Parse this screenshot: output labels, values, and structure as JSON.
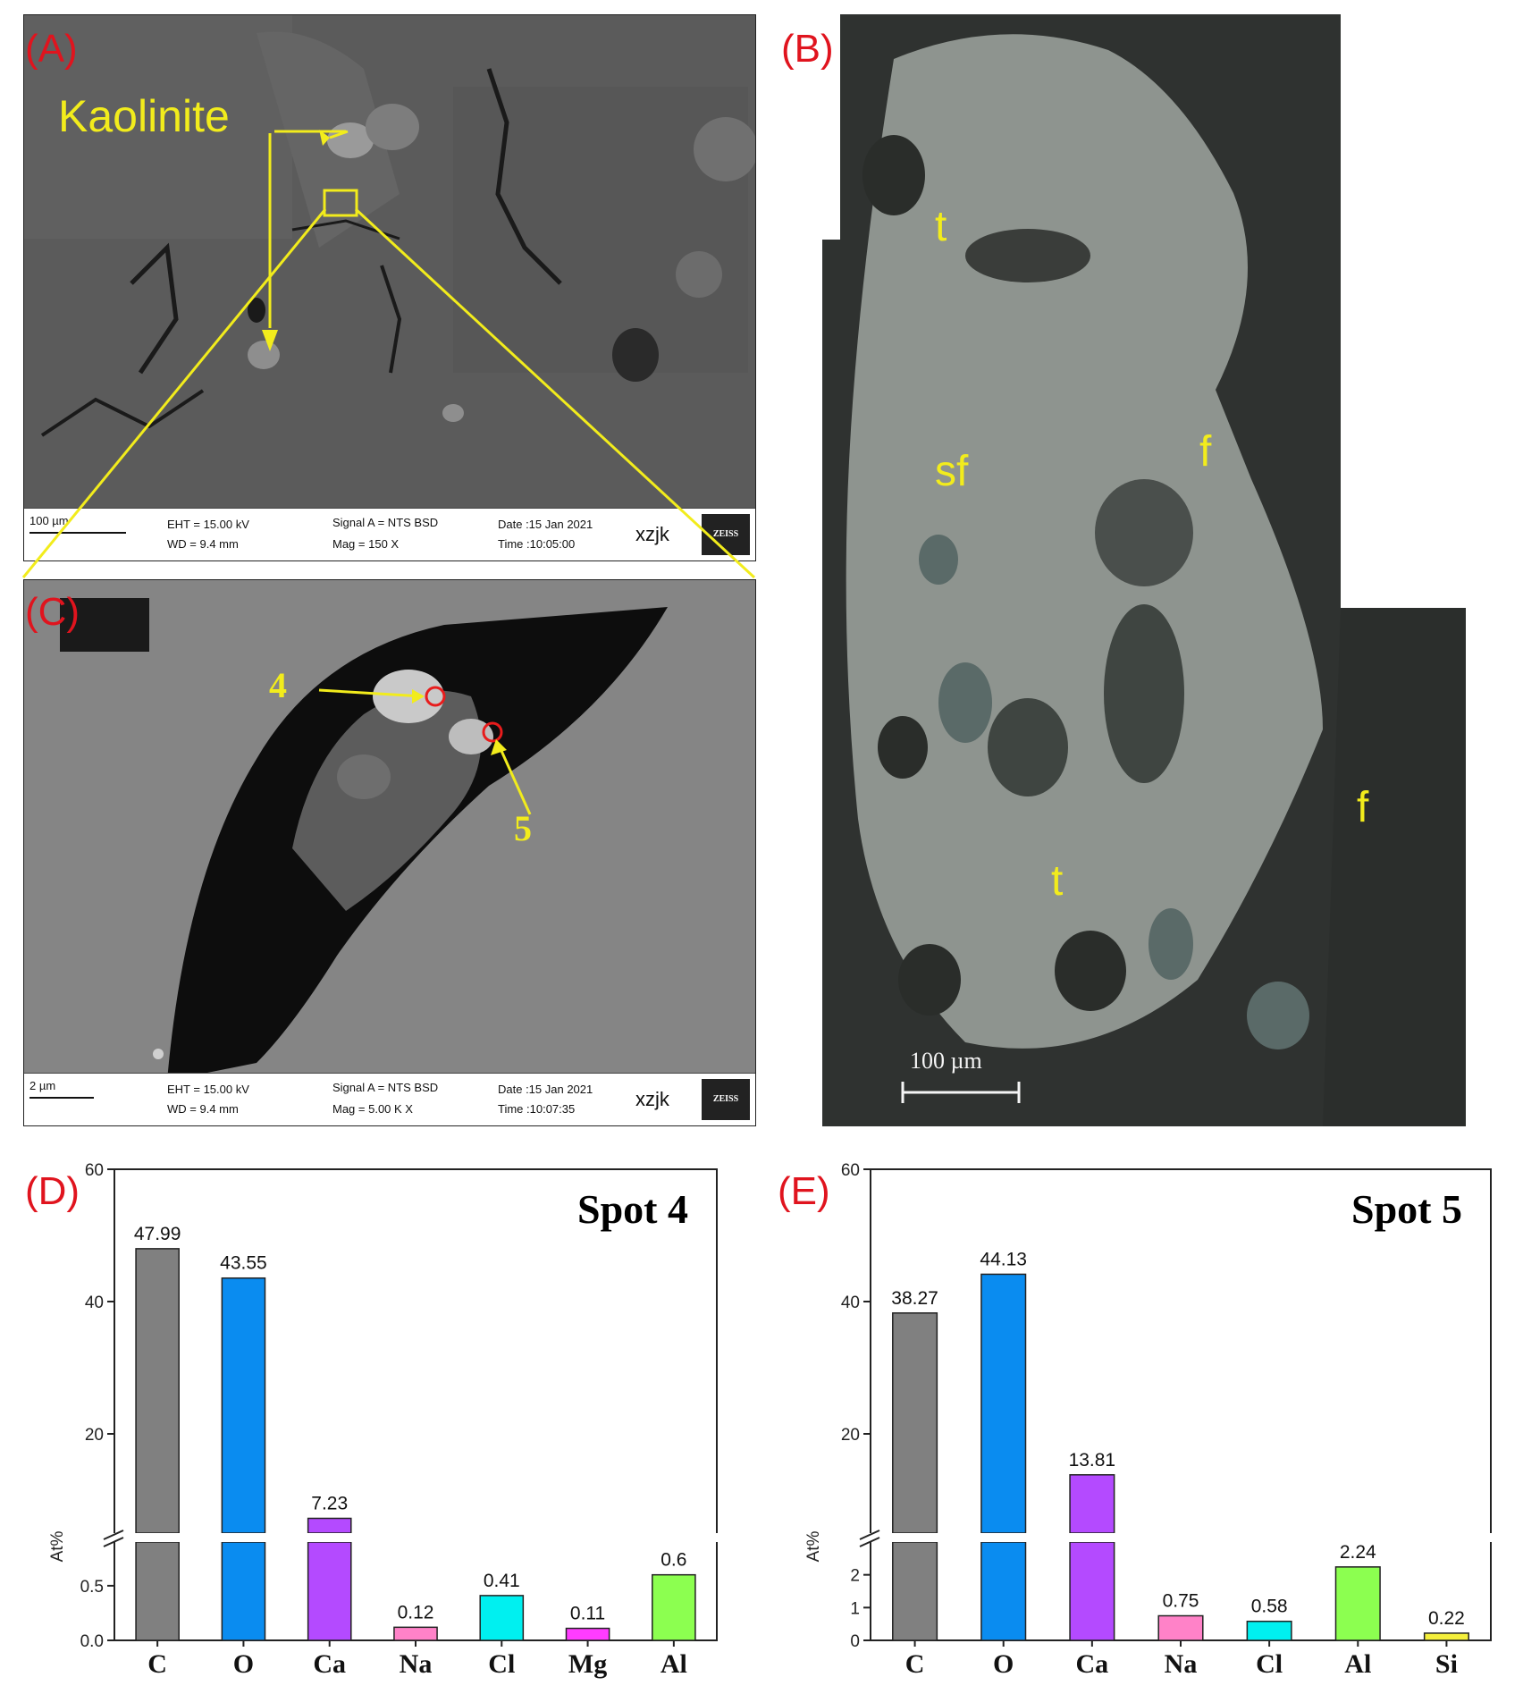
{
  "panels": {
    "A": {
      "label": "(A)",
      "annotation": "Kaolinite",
      "infobar": {
        "scale": "100 µm",
        "eht": "EHT = 15.00 kV",
        "wd": "WD = 9.4 mm",
        "signal": "Signal A = NTS BSD",
        "mag": "Mag =    150 X",
        "date": "Date :15 Jan 2021",
        "time": "Time :10:05:00",
        "operator": "xzjk",
        "brand": "ZEISS"
      }
    },
    "B": {
      "label": "(B)",
      "annotations": [
        "t",
        "sf",
        "f",
        "f",
        "t"
      ],
      "scale": "100 µm"
    },
    "C": {
      "label": "(C)",
      "spots": [
        "4",
        "5"
      ],
      "infobar": {
        "scale": "2 µm",
        "eht": "EHT = 15.00 kV",
        "wd": "WD = 9.4 mm",
        "signal": "Signal A = NTS BSD",
        "mag": "Mag =    5.00 K X",
        "date": "Date :15 Jan 2021",
        "time": "Time :10:07:35",
        "operator": "xzjk",
        "brand": "ZEISS"
      }
    }
  },
  "chart_data": [
    {
      "panel_label": "(D)",
      "type": "bar",
      "title": "Spot 4",
      "ylabel": "At%",
      "broken_axis": true,
      "lower_ylim": [
        0,
        0.9
      ],
      "upper_ylim": [
        5,
        60
      ],
      "lower_ticks": [
        "0.0",
        "0.5"
      ],
      "upper_ticks": [
        "20",
        "40",
        "60"
      ],
      "categories": [
        "C",
        "O",
        "Ca",
        "Na",
        "Cl",
        "Mg",
        "Al"
      ],
      "values": [
        47.99,
        43.55,
        7.23,
        0.12,
        0.41,
        0.11,
        0.6
      ],
      "value_labels": [
        "47.99",
        "43.55",
        "7.23",
        "0.12",
        "0.41",
        "0.11",
        "0.6"
      ],
      "colors": [
        "#808080",
        "#0a8cf0",
        "#b44aff",
        "#ff82c8",
        "#00f0f0",
        "#ff3cff",
        "#8cff50"
      ]
    },
    {
      "panel_label": "(E)",
      "type": "bar",
      "title": "Spot 5",
      "ylabel": "At%",
      "broken_axis": true,
      "lower_ylim": [
        0,
        3
      ],
      "upper_ylim": [
        5,
        60
      ],
      "lower_ticks": [
        "0",
        "1",
        "2"
      ],
      "upper_ticks": [
        "20",
        "40",
        "60"
      ],
      "categories": [
        "C",
        "O",
        "Ca",
        "Na",
        "Cl",
        "Al",
        "Si"
      ],
      "values": [
        38.27,
        44.13,
        13.81,
        0.75,
        0.58,
        2.24,
        0.22
      ],
      "value_labels": [
        "38.27",
        "44.13",
        "13.81",
        "0.75",
        "0.58",
        "2.24",
        "0.22"
      ],
      "colors": [
        "#808080",
        "#0a8cf0",
        "#b44aff",
        "#ff82c8",
        "#00f0f0",
        "#8cff50",
        "#f5f03c"
      ]
    }
  ]
}
